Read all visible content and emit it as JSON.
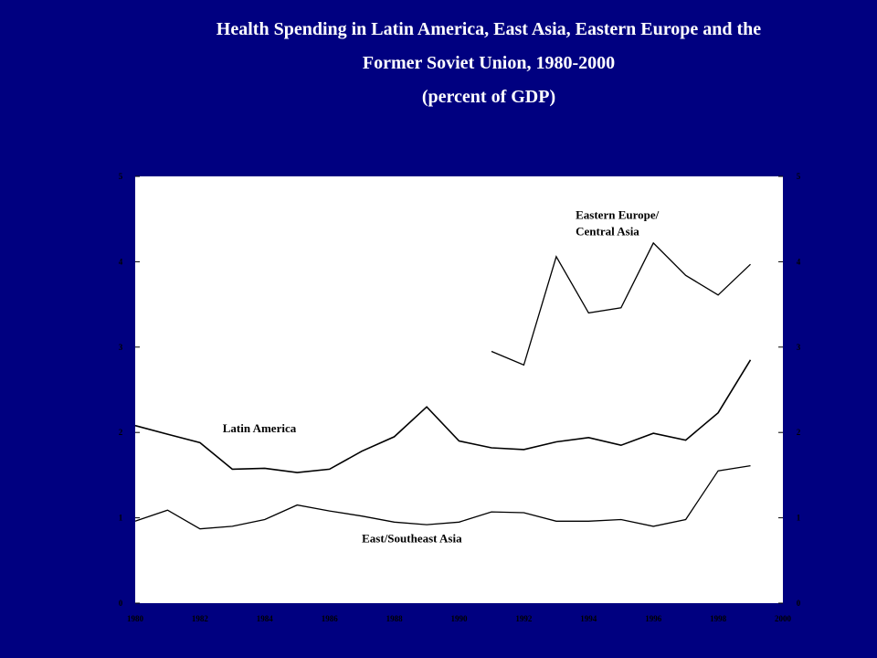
{
  "page": {
    "background": "#000080",
    "plot_background": "#ffffff",
    "line_color": "#000000",
    "tick_label_color": "#000000"
  },
  "chart_data": {
    "type": "line",
    "title_lines": [
      "Health Spending in Latin America, East Asia, Eastern Europe and the",
      "Former Soviet Union, 1980-2000",
      "(percent of GDP)"
    ],
    "xlabel": "",
    "ylabel": "",
    "xlim": [
      1980,
      2000
    ],
    "ylim": [
      0,
      5
    ],
    "x_ticks": [
      1980,
      1982,
      1984,
      1986,
      1988,
      1990,
      1992,
      1994,
      1996,
      1998,
      2000
    ],
    "y_ticks": [
      0,
      1,
      2,
      3,
      4,
      5
    ],
    "y_axis_both_sides": true,
    "grid": false,
    "legend": "none (inline labels)",
    "series": [
      {
        "name": "Latin America",
        "x": [
          1980,
          1981,
          1982,
          1983,
          1984,
          1985,
          1986,
          1987,
          1988,
          1989,
          1990,
          1991,
          1992,
          1993,
          1994,
          1995,
          1996,
          1997,
          1998,
          1999
        ],
        "y": [
          2.08,
          1.98,
          1.88,
          1.57,
          1.58,
          1.53,
          1.57,
          1.78,
          1.95,
          2.3,
          1.9,
          1.82,
          1.8,
          1.89,
          1.94,
          1.85,
          1.99,
          1.91,
          2.23,
          2.85
        ]
      },
      {
        "name": "East/Southeast Asia",
        "x": [
          1980,
          1981,
          1982,
          1983,
          1984,
          1985,
          1986,
          1987,
          1988,
          1989,
          1990,
          1991,
          1992,
          1993,
          1994,
          1995,
          1996,
          1997,
          1998,
          1999
        ],
        "y": [
          0.96,
          1.09,
          0.87,
          0.9,
          0.98,
          1.15,
          1.08,
          1.02,
          0.95,
          0.92,
          0.95,
          1.07,
          1.06,
          0.96,
          0.96,
          0.98,
          0.9,
          0.98,
          1.55,
          1.61
        ]
      },
      {
        "name": "Eastern Europe/ Central Asia",
        "x": [
          1991,
          1992,
          1993,
          1994,
          1995,
          1996,
          1997,
          1998,
          1999
        ],
        "y": [
          2.95,
          2.79,
          4.06,
          3.4,
          3.46,
          4.22,
          3.84,
          3.61,
          3.97
        ]
      }
    ],
    "annotations": [
      {
        "lines": [
          "Latin America"
        ],
        "x": 1982.7,
        "y": 2.0
      },
      {
        "lines": [
          "East/Southeast Asia"
        ],
        "x": 1987.0,
        "y": 0.71
      },
      {
        "lines": [
          "Eastern Europe/",
          "Central Asia"
        ],
        "x": 1993.6,
        "y": 4.5
      }
    ]
  }
}
